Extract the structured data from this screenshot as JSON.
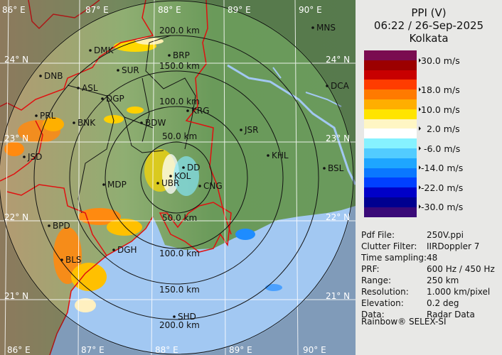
{
  "header": {
    "product": "PPI (V)",
    "datetime": "06:22 / 26-Sep-2025",
    "station": "Kolkata"
  },
  "colorbar": {
    "colors": [
      "#7a0c50",
      "#9c0000",
      "#c80000",
      "#ff3c00",
      "#ff7a00",
      "#ffae00",
      "#ffe400",
      "#fff6c4",
      "#ffffff",
      "#86f2ff",
      "#52ccff",
      "#1ea6ff",
      "#0a78ff",
      "#0040ff",
      "#0000c8",
      "#000090",
      "#3a0a78"
    ],
    "labels": [
      "30.0 m/s",
      "18.0 m/s",
      "10.0 m/s",
      "  2.0 m/s",
      " -6.0 m/s",
      "-14.0 m/s",
      "-22.0 m/s",
      "-30.0 m/s"
    ]
  },
  "info": [
    {
      "key": "Pdf File:",
      "value": "250V.ppi"
    },
    {
      "key": "Clutter Filter:",
      "value": "IIRDoppler 7"
    },
    {
      "key": "Time sampling:",
      "value": "48"
    },
    {
      "key": "PRF:",
      "value": "600 Hz / 450 Hz"
    },
    {
      "key": "Range:",
      "value": "250 km"
    },
    {
      "key": "Resolution:",
      "value": "1.000 km/pixel"
    },
    {
      "key": "Elevation:",
      "value": "0.2 deg"
    },
    {
      "key": "Data:",
      "value": "Radar Data"
    }
  ],
  "credit": "Rainbow® SELEX-SI",
  "map": {
    "lon_labels": [
      "86° E",
      "87° E",
      "88° E",
      "89° E",
      "90° E"
    ],
    "lat_labels": [
      "24° N",
      "23° N",
      "22° N",
      "21° N"
    ],
    "range_rings_km": [
      50,
      100,
      150,
      200,
      250
    ],
    "range_labels_north": [
      "50.0 km",
      "100.0 km",
      "150.0 km",
      "200.0 km"
    ],
    "range_labels_south": [
      "50.0 km",
      "100.0 km",
      "150.0 km",
      "200.0 km"
    ],
    "cities": [
      "DMK",
      "BRP",
      "SUR",
      "DNB",
      "ASL",
      "DGP",
      "KRG",
      "PRL",
      "BNK",
      "BDW",
      "JSR",
      "JSD",
      "KHL",
      "DD",
      "KOL",
      "UBR",
      "CNG",
      "MDP",
      "BPD",
      "DGH",
      "BLS",
      "SHD",
      "MNS",
      "DCA",
      "BSL"
    ],
    "colors": {
      "land": "#6f9a5c",
      "sea": "#a2c8f2",
      "border": "#e01010",
      "district": "#111111"
    }
  }
}
